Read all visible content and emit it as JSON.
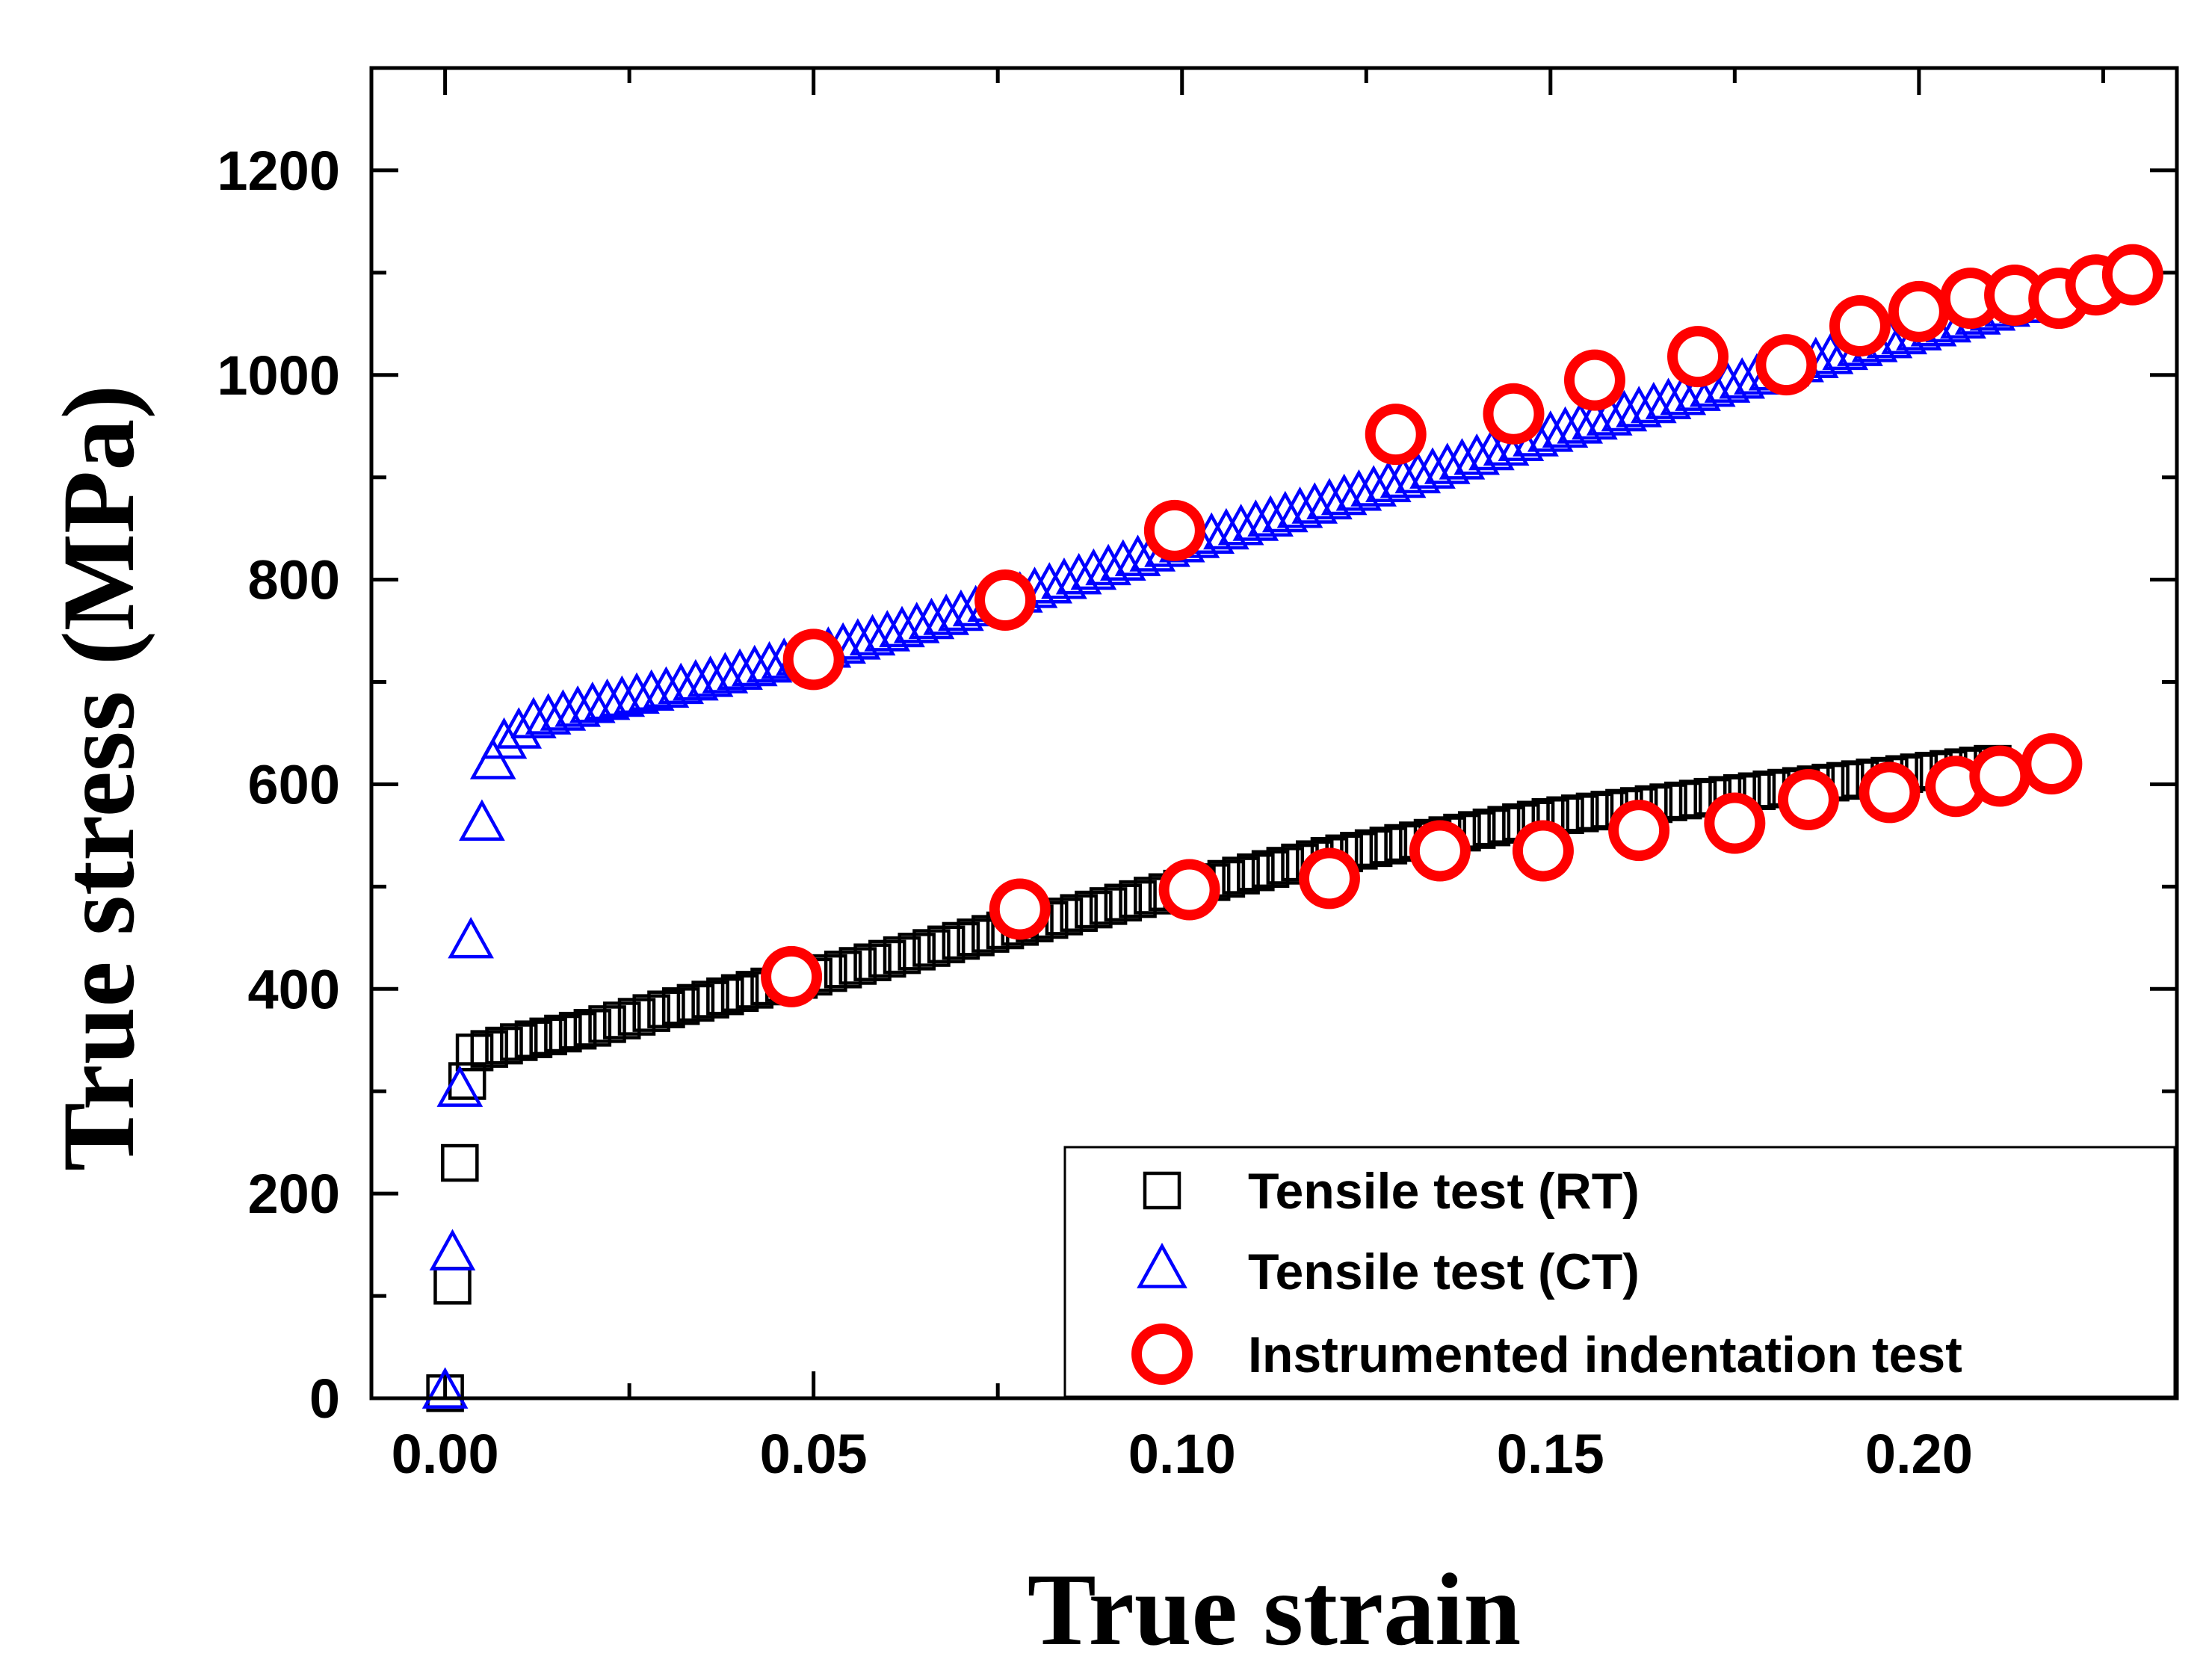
{
  "chart_data": {
    "type": "scatter",
    "title": "",
    "xlabel": "True strain",
    "ylabel": "True stress (MPa)",
    "xlim": [
      -0.01,
      0.235
    ],
    "ylim": [
      0,
      1300
    ],
    "xticks": [
      0.0,
      0.05,
      0.1,
      0.15,
      0.2
    ],
    "xtick_labels": [
      "0.00",
      "0.05",
      "0.10",
      "0.15",
      "0.20"
    ],
    "yticks": [
      0,
      200,
      400,
      600,
      800,
      1000,
      1200
    ],
    "ytick_labels": [
      "0",
      "200",
      "400",
      "600",
      "800",
      "1000",
      "1200"
    ],
    "grid": false,
    "legend_position": "bottom-right",
    "series": [
      {
        "name": "Tensile test (RT)",
        "marker": "square",
        "color": "#000000",
        "elastic": [
          [
            0.0,
            5
          ],
          [
            0.001,
            110
          ],
          [
            0.002,
            230
          ],
          [
            0.003,
            310
          ]
        ],
        "plastic_curve": {
          "x_start": 0.004,
          "x_end": 0.21,
          "step": 0.002,
          "knots": [
            [
              0.004,
              338
            ],
            [
              0.01,
              348
            ],
            [
              0.02,
              362
            ],
            [
              0.03,
              380
            ],
            [
              0.05,
              412
            ],
            [
              0.07,
              447
            ],
            [
              0.1,
              498
            ],
            [
              0.12,
              530
            ],
            [
              0.15,
              568
            ],
            [
              0.18,
              595
            ],
            [
              0.21,
              620
            ]
          ]
        }
      },
      {
        "name": "Tensile test (CT)",
        "marker": "triangle",
        "color": "#0000ff",
        "elastic": [
          [
            0.0,
            5
          ],
          [
            0.001,
            140
          ],
          [
            0.002,
            300
          ],
          [
            0.0035,
            445
          ],
          [
            0.005,
            560
          ],
          [
            0.0065,
            620
          ]
        ],
        "plastic_curve": {
          "x_start": 0.008,
          "x_end": 0.215,
          "step": 0.002,
          "knots": [
            [
              0.008,
              640
            ],
            [
              0.012,
              660
            ],
            [
              0.02,
              675
            ],
            [
              0.03,
              690
            ],
            [
              0.05,
              725
            ],
            [
              0.07,
              765
            ],
            [
              0.1,
              832
            ],
            [
              0.13,
              895
            ],
            [
              0.15,
              940
            ],
            [
              0.17,
              980
            ],
            [
              0.19,
              1020
            ],
            [
              0.215,
              1068
            ]
          ]
        }
      },
      {
        "name": "Instrumented indentation test",
        "marker": "circle",
        "color": "#ff0000",
        "points_upper": [
          [
            0.05,
            722
          ],
          [
            0.076,
            780
          ],
          [
            0.099,
            848
          ],
          [
            0.129,
            942
          ],
          [
            0.145,
            962
          ],
          [
            0.156,
            995
          ],
          [
            0.17,
            1018
          ],
          [
            0.182,
            1010
          ],
          [
            0.192,
            1048
          ],
          [
            0.2,
            1062
          ],
          [
            0.207,
            1075
          ],
          [
            0.213,
            1078
          ],
          [
            0.219,
            1075
          ],
          [
            0.224,
            1088
          ],
          [
            0.229,
            1098
          ]
        ],
        "points_lower": [
          [
            0.047,
            412
          ],
          [
            0.078,
            478
          ],
          [
            0.101,
            497
          ],
          [
            0.12,
            508
          ],
          [
            0.135,
            535
          ],
          [
            0.149,
            535
          ],
          [
            0.162,
            555
          ],
          [
            0.175,
            562
          ],
          [
            0.185,
            585
          ],
          [
            0.196,
            592
          ],
          [
            0.205,
            598
          ],
          [
            0.211,
            608
          ],
          [
            0.218,
            620
          ]
        ]
      }
    ]
  }
}
